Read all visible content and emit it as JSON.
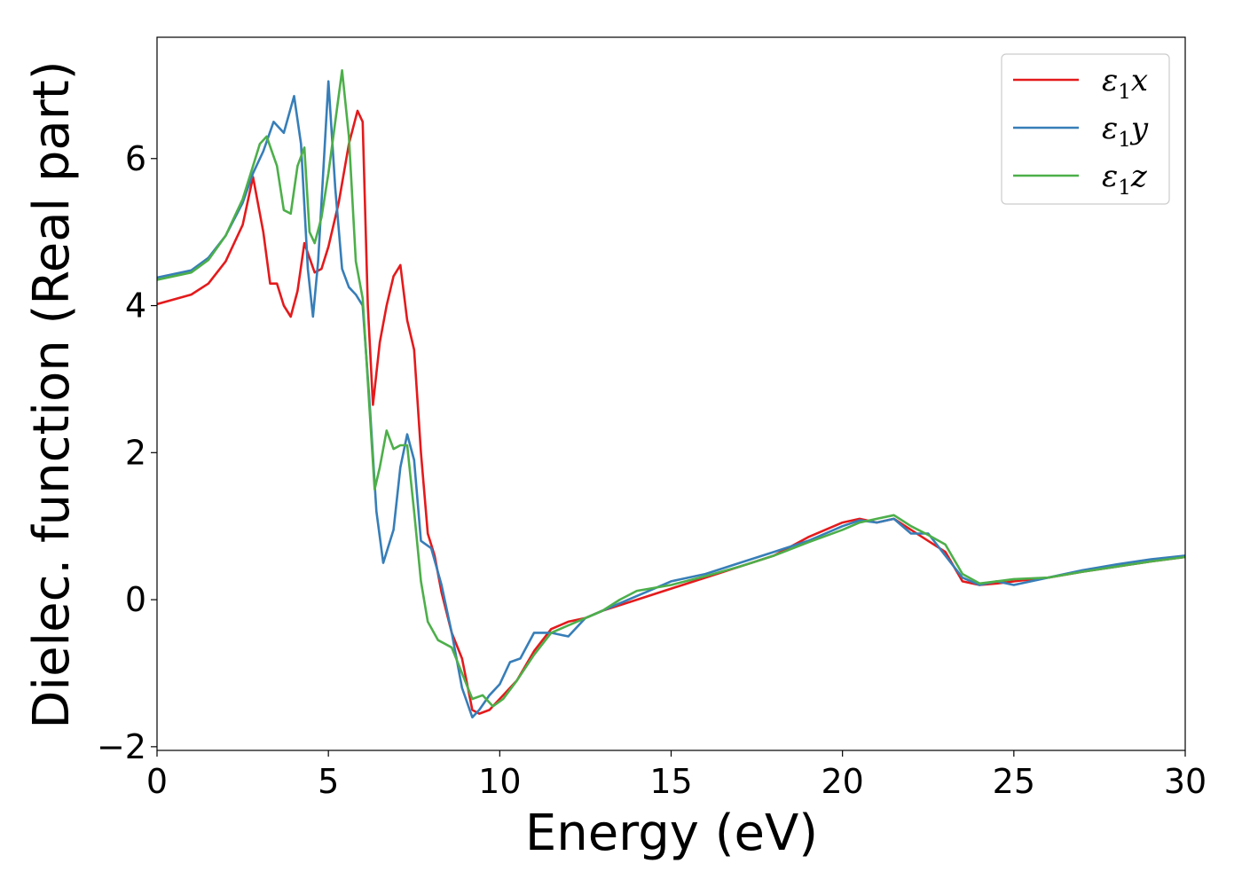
{
  "chart_data": {
    "type": "line",
    "xlabel": "Energy (eV)",
    "ylabel": "Dielec. function (Real part)",
    "xlim": [
      0,
      30
    ],
    "ylim": [
      -2.05,
      7.65
    ],
    "xticks": [
      0,
      5,
      10,
      15,
      20,
      25,
      30
    ],
    "yticks": [
      -2,
      0,
      2,
      4,
      6
    ],
    "xtick_labels": [
      "0",
      "5",
      "10",
      "15",
      "20",
      "25",
      "30"
    ],
    "ytick_labels": [
      "−2",
      "0",
      "2",
      "4",
      "6"
    ],
    "grid": false,
    "legend_position": "top-right",
    "series": [
      {
        "name": "ε₁x",
        "legend_base": "ε",
        "legend_sub": "1",
        "legend_var": "x",
        "color": "#e41a1c",
        "x": [
          0,
          1,
          1.5,
          2,
          2.5,
          2.8,
          3.1,
          3.3,
          3.5,
          3.7,
          3.9,
          4.1,
          4.3,
          4.45,
          4.6,
          4.8,
          5.0,
          5.3,
          5.6,
          5.85,
          6.0,
          6.15,
          6.3,
          6.5,
          6.7,
          6.9,
          7.1,
          7.3,
          7.5,
          7.7,
          7.9,
          8.1,
          8.3,
          8.6,
          8.9,
          9.2,
          9.4,
          9.7,
          10.0,
          10.5,
          11.0,
          11.5,
          12.0,
          12.5,
          13.0,
          14.0,
          15.0,
          16.0,
          17.0,
          18.0,
          19.0,
          20.0,
          20.5,
          21.0,
          21.5,
          22.0,
          22.5,
          23.0,
          23.5,
          24.0,
          24.5,
          25.0,
          26.0,
          27.0,
          28.0,
          29.0,
          30.0
        ],
        "y": [
          4.02,
          4.15,
          4.3,
          4.6,
          5.1,
          5.75,
          5.0,
          4.3,
          4.3,
          4.0,
          3.85,
          4.2,
          4.85,
          4.65,
          4.45,
          4.5,
          4.8,
          5.4,
          6.2,
          6.65,
          6.5,
          4.0,
          2.65,
          3.5,
          4.0,
          4.4,
          4.55,
          3.8,
          3.4,
          2.0,
          0.9,
          0.6,
          0.1,
          -0.45,
          -0.8,
          -1.5,
          -1.55,
          -1.5,
          -1.35,
          -1.1,
          -0.7,
          -0.4,
          -0.3,
          -0.25,
          -0.15,
          0.0,
          0.15,
          0.3,
          0.45,
          0.6,
          0.85,
          1.05,
          1.1,
          1.05,
          1.1,
          0.95,
          0.8,
          0.65,
          0.25,
          0.2,
          0.22,
          0.25,
          0.3,
          0.38,
          0.45,
          0.52,
          0.58
        ]
      },
      {
        "name": "ε₁y",
        "legend_base": "ε",
        "legend_sub": "1",
        "legend_var": "y",
        "color": "#377eb8",
        "x": [
          0,
          1,
          1.5,
          2,
          2.5,
          2.8,
          3.1,
          3.4,
          3.7,
          4.0,
          4.2,
          4.4,
          4.55,
          4.7,
          5.0,
          5.2,
          5.4,
          5.6,
          5.8,
          6.0,
          6.2,
          6.4,
          6.6,
          6.9,
          7.1,
          7.3,
          7.5,
          7.7,
          8.0,
          8.3,
          8.6,
          8.9,
          9.2,
          9.4,
          9.7,
          10.0,
          10.3,
          10.6,
          11.0,
          11.5,
          12.0,
          12.5,
          13.0,
          14.0,
          15.0,
          16.0,
          17.0,
          18.0,
          19.0,
          20.0,
          20.5,
          21.0,
          21.5,
          22.0,
          22.5,
          23.0,
          23.5,
          24.0,
          24.5,
          25.0,
          26.0,
          27.0,
          28.0,
          29.0,
          30.0
        ],
        "y": [
          4.38,
          4.48,
          4.65,
          4.95,
          5.4,
          5.8,
          6.1,
          6.5,
          6.35,
          6.85,
          6.2,
          4.5,
          3.85,
          4.6,
          7.05,
          5.6,
          4.5,
          4.25,
          4.15,
          4.0,
          2.7,
          1.2,
          0.5,
          0.95,
          1.8,
          2.25,
          1.9,
          0.8,
          0.7,
          0.2,
          -0.45,
          -1.2,
          -1.6,
          -1.5,
          -1.3,
          -1.15,
          -0.85,
          -0.8,
          -0.45,
          -0.45,
          -0.5,
          -0.25,
          -0.15,
          0.05,
          0.25,
          0.35,
          0.5,
          0.65,
          0.8,
          1.0,
          1.08,
          1.05,
          1.1,
          0.9,
          0.9,
          0.6,
          0.3,
          0.2,
          0.25,
          0.2,
          0.3,
          0.4,
          0.48,
          0.55,
          0.6
        ]
      },
      {
        "name": "ε₁z",
        "legend_base": "ε",
        "legend_sub": "1",
        "legend_var": "z",
        "color": "#4daf4a",
        "x": [
          0,
          1,
          1.5,
          2,
          2.5,
          2.8,
          3.0,
          3.2,
          3.5,
          3.7,
          3.9,
          4.1,
          4.3,
          4.45,
          4.6,
          4.8,
          5.0,
          5.2,
          5.4,
          5.6,
          5.8,
          6.0,
          6.2,
          6.35,
          6.5,
          6.7,
          6.9,
          7.1,
          7.3,
          7.5,
          7.7,
          7.9,
          8.2,
          8.6,
          8.9,
          9.2,
          9.5,
          9.8,
          10.1,
          10.5,
          11.0,
          11.5,
          12.0,
          12.5,
          13.0,
          13.5,
          14.0,
          15.0,
          16.0,
          17.0,
          18.0,
          19.0,
          20.0,
          20.5,
          21.0,
          21.5,
          22.0,
          22.5,
          23.0,
          23.5,
          24.0,
          24.5,
          25.0,
          26.0,
          27.0,
          28.0,
          29.0,
          30.0
        ],
        "y": [
          4.35,
          4.45,
          4.62,
          4.95,
          5.45,
          5.9,
          6.2,
          6.3,
          5.9,
          5.3,
          5.25,
          5.9,
          6.15,
          5.0,
          4.85,
          5.2,
          5.8,
          6.5,
          7.2,
          6.3,
          4.6,
          4.1,
          2.6,
          1.5,
          1.8,
          2.3,
          2.05,
          2.1,
          2.1,
          1.2,
          0.25,
          -0.3,
          -0.55,
          -0.65,
          -1.0,
          -1.35,
          -1.3,
          -1.45,
          -1.35,
          -1.1,
          -0.75,
          -0.45,
          -0.35,
          -0.25,
          -0.15,
          0.0,
          0.12,
          0.2,
          0.32,
          0.45,
          0.6,
          0.78,
          0.95,
          1.05,
          1.1,
          1.15,
          1.0,
          0.88,
          0.75,
          0.35,
          0.22,
          0.25,
          0.28,
          0.3,
          0.38,
          0.45,
          0.52,
          0.58
        ]
      }
    ]
  }
}
